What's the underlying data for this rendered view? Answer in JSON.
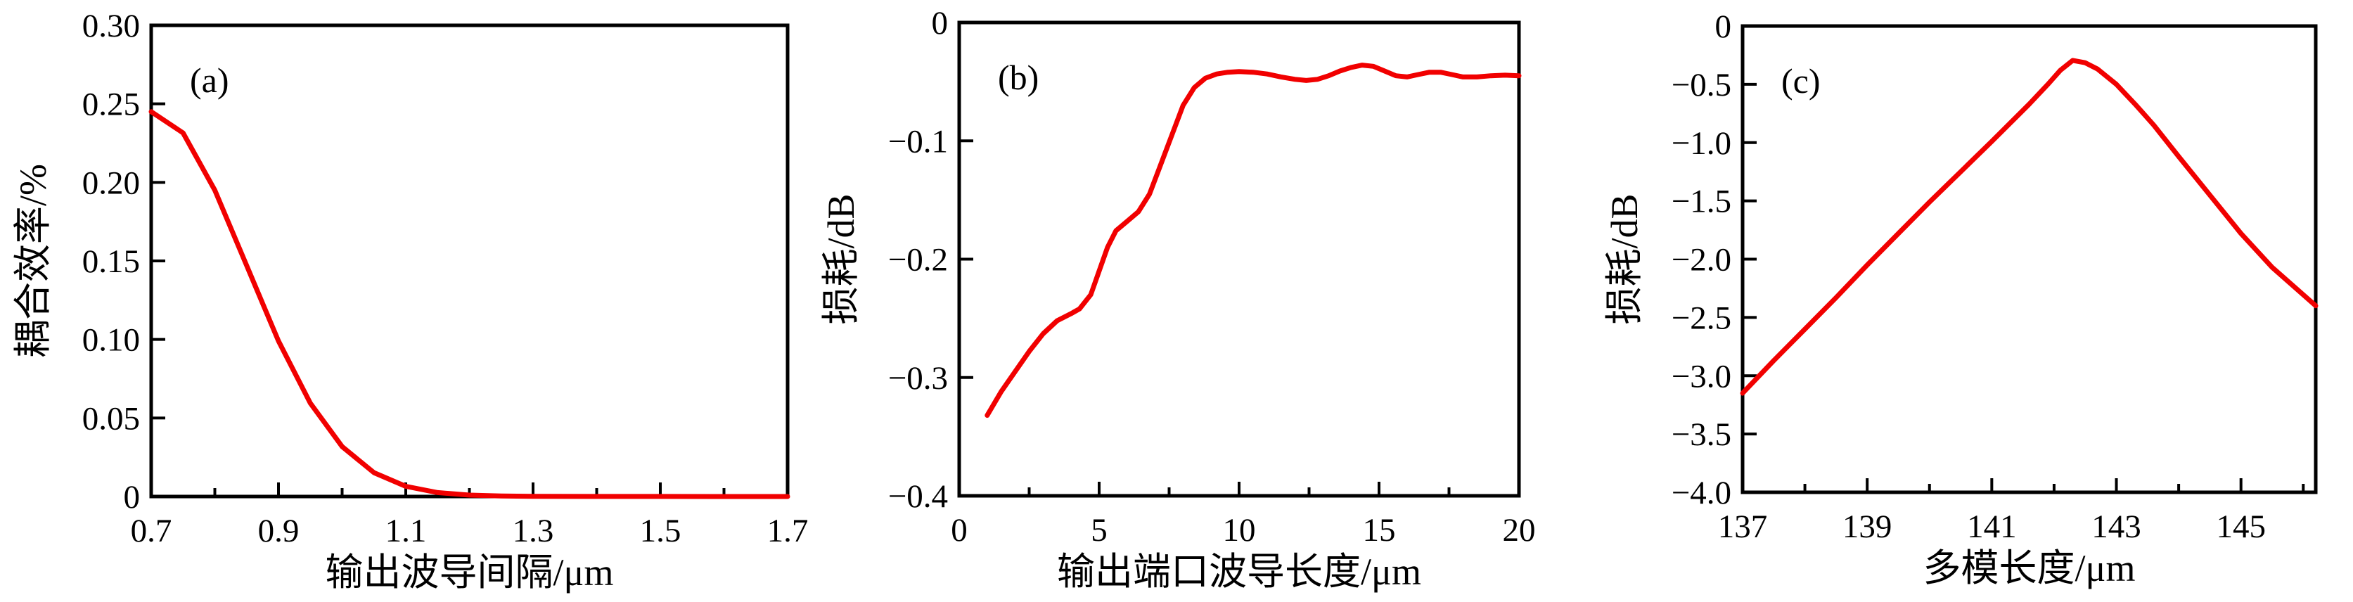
{
  "page": {
    "background": "#ffffff",
    "axis_color": "#000000",
    "curve_color": "#f10000"
  },
  "chart_data": [
    {
      "type": "line",
      "panel_label": "(a)",
      "xlabel": "输出波导间隔/μm",
      "ylabel": "耦合效率/%",
      "xlim": [
        0.7,
        1.7
      ],
      "ylim": [
        0,
        0.3
      ],
      "grid": false,
      "legend": null,
      "xticks": {
        "major": [
          0.7,
          0.9,
          1.1,
          1.3,
          1.5,
          1.7
        ],
        "major_labels": [
          "0.7",
          "0.9",
          "1.1",
          "1.3",
          "1.5",
          "1.7"
        ],
        "minor": [
          0.8,
          1.0,
          1.2,
          1.4,
          1.6
        ]
      },
      "yticks": {
        "major": [
          0,
          0.05,
          0.1,
          0.15,
          0.2,
          0.25,
          0.3
        ],
        "major_labels": [
          "0",
          "0.05",
          "0.10",
          "0.15",
          "0.20",
          "0.25",
          "0.30"
        ],
        "minor": []
      },
      "series": [
        {
          "name": "coupling-efficiency",
          "color": "#f10000",
          "x": [
            0.7,
            0.75,
            0.8,
            0.85,
            0.9,
            0.95,
            1.0,
            1.05,
            1.1,
            1.15,
            1.2,
            1.25,
            1.3,
            1.4,
            1.5,
            1.6,
            1.7
          ],
          "y": [
            0.245,
            0.2315,
            0.195,
            0.147,
            0.099,
            0.0594,
            0.0318,
            0.0152,
            0.0065,
            0.0025,
            0.0009,
            0.0003,
            0.0001,
            5e-05,
            3e-05,
            2e-05,
            2e-05
          ]
        }
      ]
    },
    {
      "type": "line",
      "panel_label": "(b)",
      "xlabel": "输出端口波导长度/μm",
      "ylabel": "损耗/dB",
      "xlim": [
        0,
        20
      ],
      "ylim": [
        -0.4,
        0
      ],
      "grid": false,
      "legend": null,
      "xticks": {
        "major": [
          0,
          5,
          10,
          15,
          20
        ],
        "major_labels": [
          "0",
          "5",
          "10",
          "15",
          "20"
        ],
        "minor": [
          2.5,
          7.5,
          12.5,
          17.5
        ]
      },
      "yticks": {
        "major": [
          -0.4,
          -0.3,
          -0.2,
          -0.1,
          0
        ],
        "major_labels": [
          "−0.4",
          "−0.3",
          "−0.2",
          "−0.1",
          "0"
        ],
        "minor": []
      },
      "series": [
        {
          "name": "loss",
          "color": "#f10000",
          "x": [
            1,
            1.5,
            2,
            2.5,
            3,
            3.5,
            4,
            4.3,
            4.7,
            5,
            5.3,
            5.6,
            6,
            6.4,
            6.8,
            7.2,
            7.6,
            8,
            8.4,
            8.8,
            9.2,
            9.6,
            10,
            10.5,
            11,
            11.5,
            12,
            12.4,
            12.8,
            13.2,
            13.6,
            14,
            14.4,
            14.8,
            15.2,
            15.6,
            16,
            16.4,
            16.8,
            17.2,
            17.6,
            18,
            18.5,
            19,
            19.5,
            20
          ],
          "y": [
            -0.332,
            -0.312,
            -0.295,
            -0.278,
            -0.263,
            -0.252,
            -0.246,
            -0.242,
            -0.23,
            -0.21,
            -0.19,
            -0.176,
            -0.168,
            -0.16,
            -0.145,
            -0.12,
            -0.095,
            -0.07,
            -0.055,
            -0.047,
            -0.0435,
            -0.042,
            -0.0415,
            -0.042,
            -0.0435,
            -0.046,
            -0.048,
            -0.049,
            -0.048,
            -0.045,
            -0.041,
            -0.038,
            -0.036,
            -0.037,
            -0.041,
            -0.045,
            -0.046,
            -0.044,
            -0.042,
            -0.042,
            -0.044,
            -0.046,
            -0.046,
            -0.045,
            -0.0445,
            -0.045
          ]
        }
      ]
    },
    {
      "type": "line",
      "panel_label": "(c)",
      "xlabel": "多模长度/μm",
      "ylabel": "损耗/dB",
      "xlim": [
        137,
        146.2
      ],
      "ylim": [
        -4.0,
        0
      ],
      "grid": false,
      "legend": null,
      "xticks": {
        "major": [
          137,
          139,
          141,
          143,
          145
        ],
        "major_labels": [
          "137",
          "139",
          "141",
          "143",
          "145"
        ],
        "minor": [
          138,
          140,
          142,
          144,
          146
        ]
      },
      "yticks": {
        "major": [
          -4.0,
          -3.5,
          -3.0,
          -2.5,
          -2.0,
          -1.5,
          -1.0,
          -0.5,
          0
        ],
        "major_labels": [
          "−4.0",
          "−3.5",
          "−3.0",
          "−2.5",
          "−2.0",
          "−1.5",
          "−1.0",
          "−0.5",
          "0"
        ],
        "minor": []
      },
      "series": [
        {
          "name": "loss",
          "color": "#f10000",
          "x": [
            137,
            137.5,
            138,
            138.5,
            139,
            139.5,
            140,
            140.5,
            141,
            141.3,
            141.6,
            141.9,
            142.1,
            142.3,
            142.5,
            142.7,
            143,
            143.3,
            143.6,
            144,
            144.5,
            145,
            145.5,
            146.2
          ],
          "y": [
            -3.15,
            -2.87,
            -2.6,
            -2.33,
            -2.05,
            -1.78,
            -1.51,
            -1.25,
            -0.99,
            -0.83,
            -0.67,
            -0.5,
            -0.38,
            -0.295,
            -0.315,
            -0.37,
            -0.5,
            -0.67,
            -0.85,
            -1.12,
            -1.45,
            -1.78,
            -2.07,
            -2.4
          ]
        }
      ]
    }
  ]
}
